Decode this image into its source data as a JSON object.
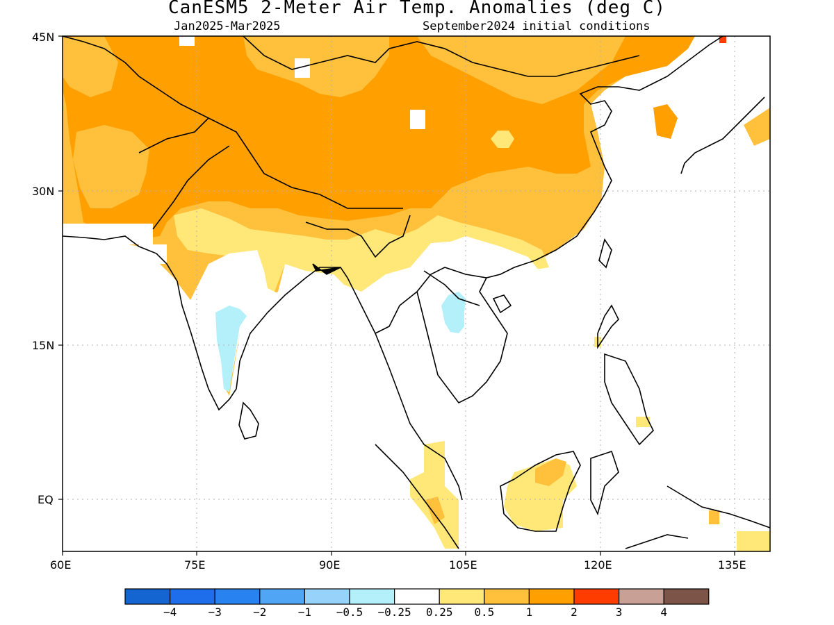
{
  "title": "CanESM5 2-Meter Air Temp. Anomalies (deg C)",
  "subtitle_left": "Jan2025-Mar2025",
  "subtitle_right": "September2024 initial conditions",
  "lat_labels": [
    "45N",
    "30N",
    "15N",
    "EQ"
  ],
  "lon_labels": [
    "60E",
    "75E",
    "90E",
    "105E",
    "120E",
    "135E"
  ],
  "colorbar": {
    "colors": [
      "#1464d2",
      "#1e6eeb",
      "#2882f0",
      "#50a5f5",
      "#96d2fa",
      "#b4f0fa",
      "#ffffff",
      "#ffe878",
      "#ffc03c",
      "#ffa000",
      "#ff3c00",
      "#c8a096",
      "#7d5548"
    ],
    "labels": [
      "-4",
      "-3",
      "-2",
      "-1",
      "-0.5",
      "-0.25",
      "0.25",
      "0.5",
      "1",
      "2",
      "3",
      "4"
    ]
  },
  "legend_colors": {
    "anom_0_5": "#ffe878",
    "anom_1": "#ffc03c",
    "anom_2": "#ffa000",
    "cool_0_25": "#b4f0fa"
  }
}
